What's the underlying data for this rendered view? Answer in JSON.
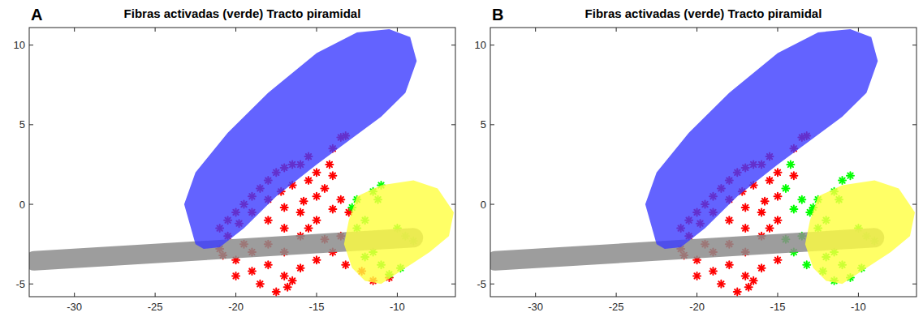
{
  "chart_data": [
    {
      "type": "scatter",
      "title": "Fibras activadas (verde) Tracto piramidal",
      "panel": "A",
      "xlim": [
        -32.8,
        -6.4
      ],
      "xticks": [
        -30,
        -25,
        -20,
        -15,
        -10
      ],
      "ylim": [
        -5.8,
        11.1
      ],
      "yticks": [
        -5,
        0,
        5,
        10
      ],
      "grid": false,
      "series": [
        {
          "type": "scatter",
          "color": "#ff0000",
          "marker": "asterisk",
          "x": [
            -21,
            -20.5,
            -20,
            -19.5,
            -19,
            -18.5,
            -18,
            -17.5,
            -17,
            -16.5,
            -16,
            -15.5,
            -14,
            -13.5,
            -13.2,
            -14.2,
            -15,
            -15.5,
            -16.5,
            -17.2,
            -18,
            -19,
            -19.8,
            -20.5,
            -21,
            -20,
            -19,
            -18,
            -17,
            -16,
            -15,
            -14.5,
            -14,
            -13.5,
            -13,
            -15,
            -16,
            -17,
            -18,
            -19,
            -20,
            -18.5,
            -17.5,
            -17,
            -16,
            -15,
            -14,
            -13.5,
            -14.5,
            -15.5,
            -16.5,
            -17,
            -18,
            -15.8,
            -14,
            -16.8,
            -13.2,
            -11.5,
            -10.5,
            -19.5,
            -20.8,
            -12.2
          ],
          "values": [
            -1.5,
            -1,
            -0.5,
            0,
            0.5,
            1,
            1.5,
            2,
            2.3,
            2.5,
            2.5,
            3,
            3.5,
            4.2,
            4.3,
            2.5,
            2,
            1.5,
            1.2,
            0.8,
            0.3,
            -0.5,
            -1.2,
            -2,
            -2.8,
            -3.5,
            -3,
            -2.5,
            -1.5,
            -0.5,
            0.5,
            1,
            -0.3,
            0.3,
            -0.5,
            -1,
            -2,
            -3,
            -3.8,
            -4.2,
            -4.5,
            -5,
            -5.5,
            -4.5,
            -4,
            -3.5,
            -3,
            -2,
            -2.2,
            -1.5,
            -4.8,
            -0.2,
            -1,
            0.2,
            1.8,
            -5.2,
            -3.8,
            -4.8,
            -4.6,
            -2.5,
            -3.2,
            -4.2
          ]
        },
        {
          "type": "scatter",
          "color": "#00ff00",
          "marker": "asterisk",
          "x": [
            -12.8,
            -12.5,
            -11.5,
            -11,
            -11.2,
            -12,
            -12.5,
            -12,
            -11.5,
            -10,
            -9.5,
            -9,
            -10.5,
            -11,
            -9.8
          ],
          "values": [
            -0.2,
            0.3,
            0.8,
            1.2,
            0.3,
            -1,
            -1.5,
            -3.3,
            -3,
            -1.5,
            -2,
            -2.3,
            -4.4,
            -3.8,
            -4
          ]
        },
        {
          "type": "line",
          "color": "#8c8c8c",
          "line_style": "solid",
          "x": [
            -32.5,
            -9
          ],
          "values": [
            -3.55,
            -2.1
          ]
        },
        {
          "type": "area",
          "color": "#3c3cff",
          "x": [
            -22.5,
            -23.2,
            -22.5,
            -20.5,
            -18,
            -15,
            -12.5,
            -10.5,
            -9.2,
            -8.8,
            -9.5,
            -11,
            -13,
            -15,
            -17.5,
            -19.5,
            -21,
            -22
          ],
          "values": [
            -2.5,
            0,
            2,
            4.5,
            7,
            9.5,
            10.8,
            11,
            10.5,
            9,
            7,
            5.5,
            4,
            2.5,
            0.5,
            -1.5,
            -2.7,
            -2.8
          ]
        },
        {
          "type": "area",
          "color": "#ffff40",
          "x": [
            -13,
            -12.5,
            -11,
            -9,
            -7.5,
            -6.5,
            -6.8,
            -8,
            -9.5,
            -11,
            -12,
            -12.8,
            -13.3
          ],
          "values": [
            -1,
            0.5,
            1.2,
            1.5,
            1,
            -0.5,
            -2,
            -3,
            -4,
            -5,
            -4.8,
            -4,
            -2.5
          ]
        }
      ]
    },
    {
      "type": "scatter",
      "title": "Fibras activadas (verde) Tracto piramidal",
      "panel": "B",
      "xlim": [
        -32.8,
        -6.4
      ],
      "xticks": [
        -30,
        -25,
        -20,
        -15,
        -10
      ],
      "ylim": [
        -5.8,
        11.1
      ],
      "yticks": [
        -5,
        0,
        5,
        10
      ],
      "grid": false,
      "series": [
        {
          "type": "scatter",
          "color": "#ff0000",
          "marker": "asterisk",
          "x": [
            -21,
            -20.5,
            -20,
            -19.5,
            -19,
            -18.5,
            -18,
            -17.5,
            -17,
            -16.5,
            -16,
            -15.5,
            -14,
            -13.5,
            -13.2,
            -15,
            -15.5,
            -16.5,
            -17.2,
            -18,
            -19,
            -19.8,
            -20.5,
            -21,
            -20,
            -19,
            -18,
            -17,
            -16,
            -15,
            -15,
            -16,
            -17,
            -18,
            -19,
            -20,
            -18.5,
            -17.5,
            -17,
            -16,
            -15,
            -15.5,
            -16.5,
            -17,
            -18,
            -15.8,
            -14,
            -16.8,
            -19.5,
            -20.8
          ],
          "values": [
            -1.5,
            -1,
            -0.5,
            0,
            0.5,
            1,
            1.5,
            2,
            2.3,
            2.5,
            2.5,
            3,
            3.5,
            4.2,
            4.3,
            2,
            1.5,
            1.2,
            0.8,
            0.3,
            -0.5,
            -1.2,
            -2,
            -2.8,
            -3.5,
            -3,
            -2.5,
            -1.5,
            -0.5,
            0.5,
            -1,
            -2,
            -3,
            -3.8,
            -4.2,
            -4.5,
            -5,
            -5.5,
            -4.5,
            -4,
            -3.5,
            -1.5,
            -4.8,
            -0.2,
            -1,
            0.2,
            1.8,
            -5.2,
            -2.5,
            -3.2
          ]
        },
        {
          "type": "scatter",
          "color": "#00ff00",
          "marker": "asterisk",
          "x": [
            -14.5,
            -14,
            -13.5,
            -13,
            -14.5,
            -14,
            -13.5,
            -14.2,
            -13.2,
            -11.5,
            -10.5,
            -12.2,
            -12.8,
            -12.5,
            -11.5,
            -11,
            -10.5,
            -11.2,
            -12,
            -12.5,
            -12,
            -11.5,
            -10,
            -9.5,
            -9,
            -11,
            -9.8
          ],
          "values": [
            1,
            -0.3,
            0.3,
            -0.5,
            -2.2,
            -3,
            -2,
            2.5,
            -3.8,
            -4.8,
            -4.6,
            -4.2,
            -0.2,
            0.3,
            0.8,
            1.5,
            1.8,
            0.3,
            -1,
            -1.5,
            -3.3,
            -3,
            -1.5,
            -2,
            -2.3,
            -3.8,
            -4
          ]
        },
        {
          "type": "line",
          "color": "#8c8c8c",
          "line_style": "solid",
          "x": [
            -32.5,
            -9
          ],
          "values": [
            -3.55,
            -2.1
          ]
        },
        {
          "type": "area",
          "color": "#3c3cff",
          "x": [
            -22.5,
            -23.2,
            -22.5,
            -20.5,
            -18,
            -15,
            -12.5,
            -10.5,
            -9.2,
            -8.8,
            -9.5,
            -11,
            -13,
            -15,
            -17.5,
            -19.5,
            -21,
            -22
          ],
          "values": [
            -2.5,
            0,
            2,
            4.5,
            7,
            9.5,
            10.8,
            11,
            10.5,
            9,
            7,
            5.5,
            4,
            2.5,
            0.5,
            -1.5,
            -2.7,
            -2.8
          ]
        },
        {
          "type": "area",
          "color": "#ffff40",
          "x": [
            -13,
            -12.5,
            -11,
            -9,
            -7.5,
            -6.5,
            -6.8,
            -8,
            -9.5,
            -11,
            -12,
            -12.8,
            -13.3
          ],
          "values": [
            -1,
            0.5,
            1.2,
            1.5,
            1,
            -0.5,
            -2,
            -3,
            -4,
            -5,
            -4.8,
            -4,
            -2.5
          ]
        }
      ]
    }
  ]
}
